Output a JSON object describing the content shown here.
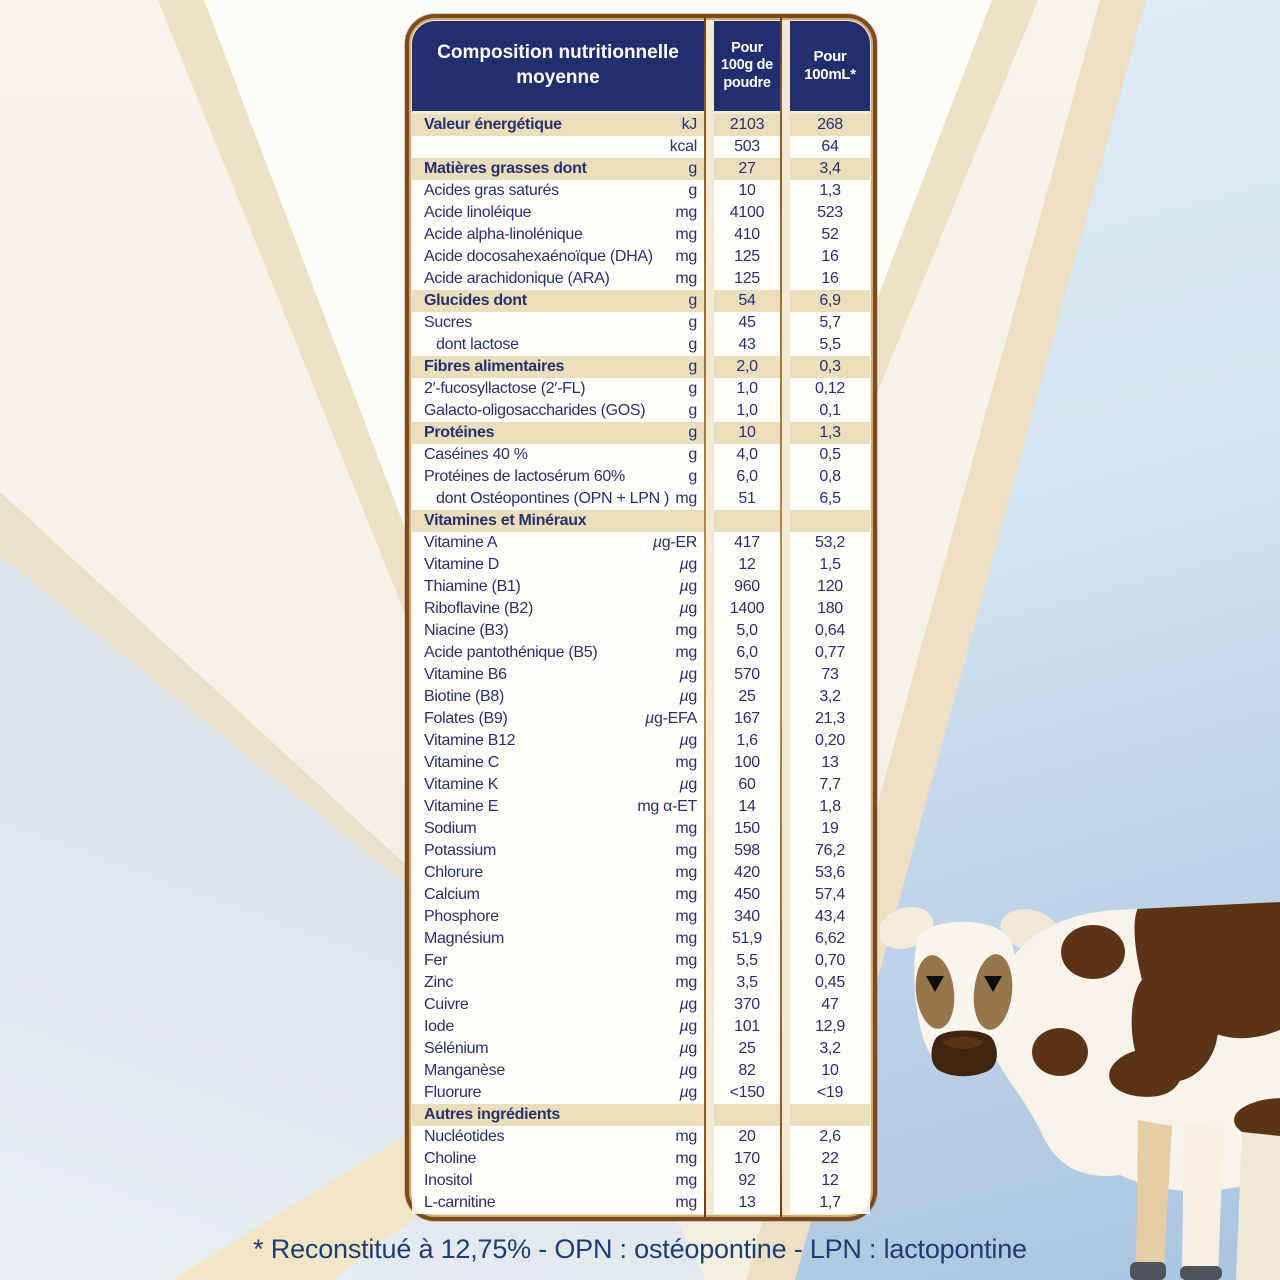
{
  "table": {
    "header": {
      "title": "Composition nutritionnelle moyenne",
      "col_100g": "Pour\n100g de\npoudre",
      "col_100ml": "Pour\n100mL*"
    },
    "rows": [
      {
        "label": "Valeur énergétique",
        "unit": "kJ",
        "per100g": "2103",
        "per100ml": "268",
        "style": "section"
      },
      {
        "label": "",
        "unit": "kcal",
        "per100g": "503",
        "per100ml": "64",
        "style": "normal"
      },
      {
        "label": "Matières grasses dont",
        "unit": "g",
        "per100g": "27",
        "per100ml": "3,4",
        "style": "section"
      },
      {
        "label": "Acides gras saturés",
        "unit": "g",
        "per100g": "10",
        "per100ml": "1,3",
        "style": "normal"
      },
      {
        "label": "Acide linoléique",
        "unit": "mg",
        "per100g": "4100",
        "per100ml": "523",
        "style": "normal"
      },
      {
        "label": "Acide alpha-linolénique",
        "unit": "mg",
        "per100g": "410",
        "per100ml": "52",
        "style": "normal"
      },
      {
        "label": "Acide docosahexaénoïque (DHA)",
        "unit": "mg",
        "per100g": "125",
        "per100ml": "16",
        "style": "normal"
      },
      {
        "label": "Acide arachidonique (ARA)",
        "unit": "mg",
        "per100g": "125",
        "per100ml": "16",
        "style": "normal"
      },
      {
        "label": "Glucides dont",
        "unit": "g",
        "per100g": "54",
        "per100ml": "6,9",
        "style": "section"
      },
      {
        "label": "Sucres",
        "unit": "g",
        "per100g": "45",
        "per100ml": "5,7",
        "style": "normal"
      },
      {
        "label": "dont lactose",
        "unit": "g",
        "per100g": "43",
        "per100ml": "5,5",
        "style": "normal",
        "indent": true
      },
      {
        "label": "Fibres alimentaires",
        "unit": "g",
        "per100g": "2,0",
        "per100ml": "0,3",
        "style": "section"
      },
      {
        "label": "2′-fucosyllactose (2′-FL)",
        "unit": "g",
        "per100g": "1,0",
        "per100ml": "0,12",
        "style": "normal"
      },
      {
        "label": "Galacto-oligosaccharides (GOS)",
        "unit": "g",
        "per100g": "1,0",
        "per100ml": "0,1",
        "style": "normal"
      },
      {
        "label": "Protéines",
        "unit": "g",
        "per100g": "10",
        "per100ml": "1,3",
        "style": "section"
      },
      {
        "label": "Caséines 40 %",
        "unit": "g",
        "per100g": "4,0",
        "per100ml": "0,5",
        "style": "normal"
      },
      {
        "label": "Protéines de lactosérum 60%",
        "unit": "g",
        "per100g": "6,0",
        "per100ml": "0,8",
        "style": "normal"
      },
      {
        "label": "dont Ostéopontines (OPN + LPN )",
        "unit": "mg",
        "per100g": "51",
        "per100ml": "6,5",
        "style": "normal",
        "indent": true
      },
      {
        "label": "Vitamines et Minéraux",
        "unit": "",
        "per100g": "",
        "per100ml": "",
        "style": "section",
        "span": true
      },
      {
        "label": "Vitamine A",
        "unit": "µg-ER",
        "per100g": "417",
        "per100ml": "53,2",
        "style": "normal"
      },
      {
        "label": "Vitamine D",
        "unit": "µg",
        "per100g": "12",
        "per100ml": "1,5",
        "style": "normal"
      },
      {
        "label": "Thiamine (B1)",
        "unit": "µg",
        "per100g": "960",
        "per100ml": "120",
        "style": "normal"
      },
      {
        "label": "Riboflavine (B2)",
        "unit": "µg",
        "per100g": "1400",
        "per100ml": "180",
        "style": "normal"
      },
      {
        "label": "Niacine (B3)",
        "unit": "mg",
        "per100g": "5,0",
        "per100ml": "0,64",
        "style": "normal"
      },
      {
        "label": "Acide pantothénique (B5)",
        "unit": "mg",
        "per100g": "6,0",
        "per100ml": "0,77",
        "style": "normal"
      },
      {
        "label": "Vitamine B6",
        "unit": "µg",
        "per100g": "570",
        "per100ml": "73",
        "style": "normal"
      },
      {
        "label": "Biotine (B8)",
        "unit": "µg",
        "per100g": "25",
        "per100ml": "3,2",
        "style": "normal"
      },
      {
        "label": "Folates (B9)",
        "unit": "µg-EFA",
        "per100g": "167",
        "per100ml": "21,3",
        "style": "normal"
      },
      {
        "label": "Vitamine B12",
        "unit": "µg",
        "per100g": "1,6",
        "per100ml": "0,20",
        "style": "normal"
      },
      {
        "label": "Vitamine C",
        "unit": "mg",
        "per100g": "100",
        "per100ml": "13",
        "style": "normal"
      },
      {
        "label": "Vitamine K",
        "unit": "µg",
        "per100g": "60",
        "per100ml": "7,7",
        "style": "normal"
      },
      {
        "label": "Vitamine E",
        "unit": "mg α-ET",
        "per100g": "14",
        "per100ml": "1,8",
        "style": "normal"
      },
      {
        "label": "Sodium",
        "unit": "mg",
        "per100g": "150",
        "per100ml": "19",
        "style": "normal"
      },
      {
        "label": "Potassium",
        "unit": "mg",
        "per100g": "598",
        "per100ml": "76,2",
        "style": "normal"
      },
      {
        "label": "Chlorure",
        "unit": "mg",
        "per100g": "420",
        "per100ml": "53,6",
        "style": "normal"
      },
      {
        "label": "Calcium",
        "unit": "mg",
        "per100g": "450",
        "per100ml": "57,4",
        "style": "normal"
      },
      {
        "label": "Phosphore",
        "unit": "mg",
        "per100g": "340",
        "per100ml": "43,4",
        "style": "normal"
      },
      {
        "label": "Magnésium",
        "unit": "mg",
        "per100g": "51,9",
        "per100ml": "6,62",
        "style": "normal"
      },
      {
        "label": "Fer",
        "unit": "mg",
        "per100g": "5,5",
        "per100ml": "0,70",
        "style": "normal"
      },
      {
        "label": "Zinc",
        "unit": "mg",
        "per100g": "3,5",
        "per100ml": "0,45",
        "style": "normal"
      },
      {
        "label": "Cuivre",
        "unit": "µg",
        "per100g": "370",
        "per100ml": "47",
        "style": "normal"
      },
      {
        "label": "Iode",
        "unit": "µg",
        "per100g": "101",
        "per100ml": "12,9",
        "style": "normal"
      },
      {
        "label": "Sélénium",
        "unit": "µg",
        "per100g": "25",
        "per100ml": "3,2",
        "style": "normal"
      },
      {
        "label": "Manganèse",
        "unit": "µg",
        "per100g": "82",
        "per100ml": "10",
        "style": "normal"
      },
      {
        "label": "Fluorure",
        "unit": "µg",
        "per100g": "<150",
        "per100ml": "<19",
        "style": "normal"
      },
      {
        "label": "Autres ingrédients",
        "unit": "",
        "per100g": "",
        "per100ml": "",
        "style": "section",
        "span": true
      },
      {
        "label": "Nucléotides",
        "unit": "mg",
        "per100g": "20",
        "per100ml": "2,6",
        "style": "normal"
      },
      {
        "label": "Choline",
        "unit": "mg",
        "per100g": "170",
        "per100ml": "22",
        "style": "normal"
      },
      {
        "label": "Inositol",
        "unit": "mg",
        "per100g": "92",
        "per100ml": "12",
        "style": "normal"
      },
      {
        "label": "L-carnitine",
        "unit": "mg",
        "per100g": "13",
        "per100ml": "1,7",
        "style": "normal"
      }
    ]
  },
  "footnote": "* Reconstitué à 12,75% - OPN : ostéopontine - LPN : lactopontine",
  "cow": {
    "description": "cow illustration"
  },
  "colors": {
    "header_navy": "#232e6e",
    "row_beige": "#eaddba",
    "table_border_brown": "#7c4a1e",
    "text_navy": "#27316d",
    "footnote_navy": "#1e3d74",
    "background_cream": "#f7f3ea",
    "background_blue": "#abc4df",
    "cow_brown": "#5b3418",
    "cow_tan": "#96774b"
  }
}
